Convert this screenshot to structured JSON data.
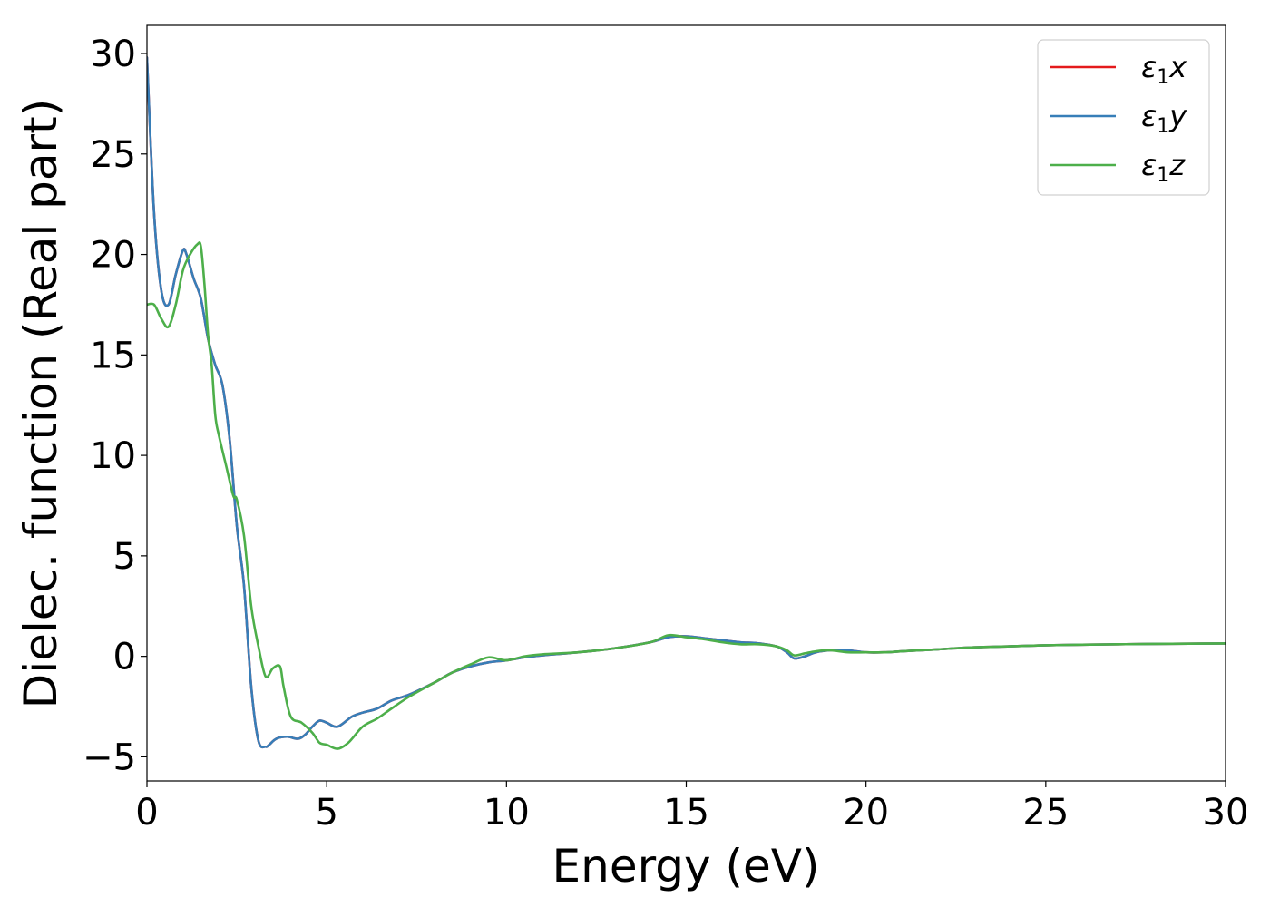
{
  "chart_data": {
    "type": "line",
    "title": "",
    "xlabel": "Energy (eV)",
    "ylabel": "Dielec. function (Real part)",
    "xlim": [
      0,
      30
    ],
    "ylim": [
      -6.2,
      31.4
    ],
    "xticks": [
      0,
      5,
      10,
      15,
      20,
      25,
      30
    ],
    "yticks": [
      -5,
      0,
      5,
      10,
      15,
      20,
      25,
      30
    ],
    "xtick_labels": [
      "0",
      "5",
      "10",
      "15",
      "20",
      "25",
      "30"
    ],
    "ytick_labels": [
      "−5",
      "0",
      "5",
      "10",
      "15",
      "20",
      "25",
      "30"
    ],
    "grid": false,
    "legend_position": "top-right",
    "series": [
      {
        "name": "ε₁x",
        "legend": {
          "symbol": "ε",
          "sub": "1",
          "comp": "x"
        },
        "color": "#e41a1c",
        "x": [
          0,
          0.2,
          0.4,
          0.6,
          0.8,
          1.0,
          1.1,
          1.3,
          1.5,
          1.7,
          1.9,
          2.1,
          2.3,
          2.5,
          2.7,
          2.9,
          3.1,
          3.3,
          3.4,
          3.6,
          3.9,
          4.2,
          4.4,
          4.6,
          4.8,
          5.0,
          5.3,
          5.7,
          6.0,
          6.4,
          6.8,
          7.3,
          8.0,
          8.5,
          9.0,
          9.5,
          10.0,
          10.5,
          11.0,
          12.0,
          13.0,
          14.0,
          14.5,
          15.0,
          15.5,
          16.0,
          16.5,
          17.0,
          17.5,
          17.8,
          18.0,
          18.3,
          18.6,
          19.0,
          19.5,
          20.0,
          20.5,
          21.0,
          22.0,
          23.0,
          24.0,
          25.0,
          26.0,
          27.0,
          28.0,
          29.0,
          30.0
        ],
        "values": [
          29.8,
          22.0,
          18.2,
          17.5,
          19.0,
          20.2,
          20.0,
          18.8,
          17.8,
          15.8,
          14.5,
          13.5,
          10.8,
          6.5,
          3.5,
          -1.5,
          -4.2,
          -4.5,
          -4.4,
          -4.1,
          -4.0,
          -4.1,
          -3.9,
          -3.5,
          -3.2,
          -3.3,
          -3.5,
          -3.0,
          -2.8,
          -2.6,
          -2.2,
          -1.9,
          -1.3,
          -0.8,
          -0.5,
          -0.3,
          -0.2,
          -0.05,
          0.05,
          0.2,
          0.4,
          0.7,
          0.95,
          1.0,
          0.9,
          0.8,
          0.7,
          0.65,
          0.5,
          0.2,
          -0.1,
          0.0,
          0.2,
          0.3,
          0.3,
          0.2,
          0.2,
          0.25,
          0.35,
          0.45,
          0.5,
          0.55,
          0.58,
          0.6,
          0.62,
          0.63,
          0.64
        ]
      },
      {
        "name": "ε₁y",
        "legend": {
          "symbol": "ε",
          "sub": "1",
          "comp": "y"
        },
        "color": "#377eb8",
        "x": [
          0,
          0.2,
          0.4,
          0.6,
          0.8,
          1.0,
          1.1,
          1.3,
          1.5,
          1.7,
          1.9,
          2.1,
          2.3,
          2.5,
          2.7,
          2.9,
          3.1,
          3.3,
          3.4,
          3.6,
          3.9,
          4.2,
          4.4,
          4.6,
          4.8,
          5.0,
          5.3,
          5.7,
          6.0,
          6.4,
          6.8,
          7.3,
          8.0,
          8.5,
          9.0,
          9.5,
          10.0,
          10.5,
          11.0,
          12.0,
          13.0,
          14.0,
          14.5,
          15.0,
          15.5,
          16.0,
          16.5,
          17.0,
          17.5,
          17.8,
          18.0,
          18.3,
          18.6,
          19.0,
          19.5,
          20.0,
          20.5,
          21.0,
          22.0,
          23.0,
          24.0,
          25.0,
          26.0,
          27.0,
          28.0,
          29.0,
          30.0
        ],
        "values": [
          29.8,
          22.0,
          18.2,
          17.5,
          19.0,
          20.2,
          20.0,
          18.8,
          17.8,
          15.8,
          14.5,
          13.5,
          10.8,
          6.5,
          3.5,
          -1.5,
          -4.2,
          -4.5,
          -4.4,
          -4.1,
          -4.0,
          -4.1,
          -3.9,
          -3.5,
          -3.2,
          -3.3,
          -3.5,
          -3.0,
          -2.8,
          -2.6,
          -2.2,
          -1.9,
          -1.3,
          -0.8,
          -0.5,
          -0.3,
          -0.2,
          -0.05,
          0.05,
          0.2,
          0.4,
          0.7,
          0.95,
          1.0,
          0.9,
          0.8,
          0.7,
          0.65,
          0.5,
          0.2,
          -0.1,
          0.0,
          0.2,
          0.3,
          0.3,
          0.2,
          0.2,
          0.25,
          0.35,
          0.45,
          0.5,
          0.55,
          0.58,
          0.6,
          0.62,
          0.63,
          0.64
        ]
      },
      {
        "name": "ε₁z",
        "legend": {
          "symbol": "ε",
          "sub": "1",
          "comp": "z"
        },
        "color": "#4daf4a",
        "x": [
          0,
          0.2,
          0.4,
          0.6,
          0.8,
          1.0,
          1.2,
          1.4,
          1.5,
          1.6,
          1.7,
          1.8,
          1.9,
          2.0,
          2.2,
          2.4,
          2.5,
          2.7,
          2.9,
          3.1,
          3.3,
          3.5,
          3.7,
          3.8,
          4.0,
          4.3,
          4.6,
          4.8,
          5.0,
          5.3,
          5.6,
          6.0,
          6.4,
          6.8,
          7.3,
          8.0,
          8.5,
          9.0,
          9.5,
          10.0,
          10.5,
          11.0,
          12.0,
          13.0,
          14.0,
          14.5,
          15.0,
          15.5,
          16.0,
          16.5,
          17.0,
          17.5,
          17.8,
          18.0,
          18.3,
          18.6,
          19.0,
          19.5,
          20.0,
          20.5,
          21.0,
          22.0,
          23.0,
          24.0,
          25.0,
          26.0,
          27.0,
          28.0,
          29.0,
          30.0
        ],
        "values": [
          17.5,
          17.5,
          16.8,
          16.4,
          17.5,
          19.2,
          20.0,
          20.5,
          20.4,
          18.5,
          16.0,
          14.5,
          12.0,
          11.0,
          9.5,
          8.0,
          7.8,
          6.0,
          2.5,
          0.5,
          -1.0,
          -0.6,
          -0.5,
          -1.5,
          -3.0,
          -3.3,
          -3.8,
          -4.3,
          -4.4,
          -4.6,
          -4.3,
          -3.5,
          -3.1,
          -2.6,
          -2.0,
          -1.3,
          -0.8,
          -0.4,
          -0.05,
          -0.2,
          0.0,
          0.1,
          0.2,
          0.4,
          0.7,
          1.05,
          0.95,
          0.85,
          0.7,
          0.6,
          0.6,
          0.5,
          0.3,
          0.05,
          0.15,
          0.25,
          0.3,
          0.2,
          0.2,
          0.2,
          0.25,
          0.35,
          0.45,
          0.5,
          0.55,
          0.58,
          0.6,
          0.62,
          0.63,
          0.64
        ]
      }
    ]
  }
}
